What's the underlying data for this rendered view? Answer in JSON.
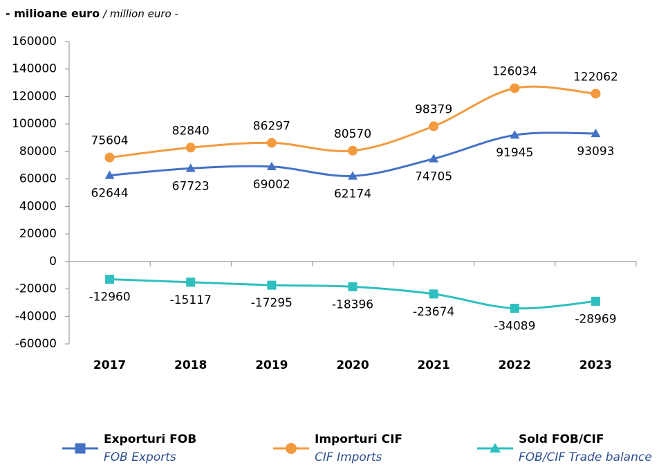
{
  "chart_data": {
    "type": "line",
    "title": "- milioane euro",
    "subtitle": "/ million euro -",
    "categories": [
      "2017",
      "2018",
      "2019",
      "2020",
      "2021",
      "2022",
      "2023"
    ],
    "series": [
      {
        "name": "Exporturi FOB",
        "name_en": "FOB Exports",
        "color": "#4472c4",
        "marker": "triangle",
        "legend_marker": "square",
        "values": [
          62644,
          67723,
          69002,
          62174,
          74705,
          91945,
          93093
        ],
        "label_position": "below"
      },
      {
        "name": "Importuri CIF",
        "name_en": "CIF Imports",
        "color": "#f39a3e",
        "marker": "circle",
        "legend_marker": "circle",
        "values": [
          75604,
          82840,
          86297,
          80570,
          98379,
          126034,
          122062
        ],
        "label_position": "above"
      },
      {
        "name": "Sold FOB/CIF",
        "name_en": "FOB/CIF Trade balance",
        "color": "#2fbfbf",
        "marker": "square",
        "legend_marker": "triangle",
        "values": [
          -12960,
          -15117,
          -17295,
          -18396,
          -23674,
          -34089,
          -28969
        ],
        "label_position": "below"
      }
    ],
    "ylim": [
      -60000,
      160000
    ],
    "yticks": [
      -60000,
      -40000,
      -20000,
      0,
      20000,
      40000,
      60000,
      80000,
      100000,
      120000,
      140000,
      160000
    ],
    "smooth": true,
    "legend": "bottom"
  }
}
